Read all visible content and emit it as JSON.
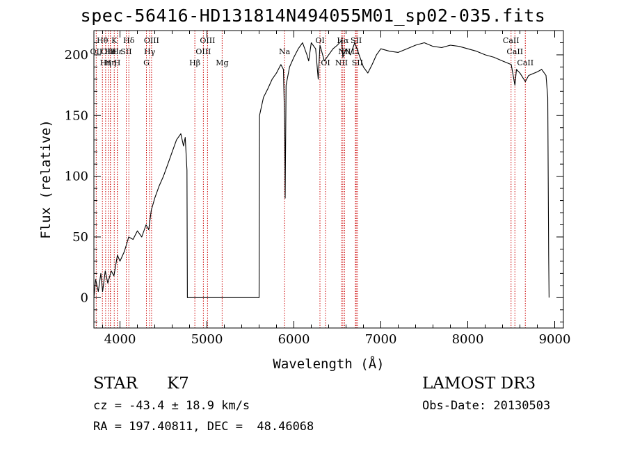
{
  "title": "spec-56416-HD131814N494055M01_sp02-035.fits",
  "info": {
    "class_label": "STAR",
    "subclass": "K7",
    "survey": "LAMOST DR3",
    "cz": "cz = -43.4 ± 18.9 km/s",
    "obs_date": "Obs-Date: 20130503",
    "coords": "RA = 197.40811, DEC =  48.46068"
  },
  "colors": {
    "spectrum": "#000000",
    "lines": "#cc0000",
    "background": "#ffffff"
  },
  "chart_data": {
    "type": "line",
    "title": "spec-56416-HD131814N494055M01_sp02-035.fits",
    "xlabel": "Wavelength (Å)",
    "ylabel": "Flux (relative)",
    "xlim": [
      3700,
      9100
    ],
    "ylim": [
      -25,
      220
    ],
    "xticks": [
      4000,
      5000,
      6000,
      7000,
      8000,
      9000
    ],
    "yticks": [
      0,
      50,
      100,
      150,
      200
    ],
    "grid": false,
    "series": [
      {
        "values": [
          [
            3700,
            0
          ],
          [
            3720,
            15
          ],
          [
            3750,
            5
          ],
          [
            3780,
            20
          ],
          [
            3800,
            5
          ],
          [
            3830,
            22
          ],
          [
            3860,
            12
          ],
          [
            3900,
            22
          ],
          [
            3930,
            18
          ],
          [
            3970,
            35
          ],
          [
            4000,
            30
          ],
          [
            4050,
            38
          ],
          [
            4080,
            45
          ],
          [
            4100,
            50
          ],
          [
            4150,
            48
          ],
          [
            4200,
            55
          ],
          [
            4250,
            50
          ],
          [
            4300,
            60
          ],
          [
            4330,
            56
          ],
          [
            4360,
            72
          ],
          [
            4400,
            82
          ],
          [
            4450,
            92
          ],
          [
            4500,
            100
          ],
          [
            4550,
            110
          ],
          [
            4600,
            120
          ],
          [
            4650,
            130
          ],
          [
            4700,
            135
          ],
          [
            4730,
            125
          ],
          [
            4750,
            132
          ],
          [
            4770,
            105
          ],
          [
            4775,
            0
          ],
          [
            5600,
            0
          ],
          [
            5605,
            150
          ],
          [
            5650,
            165
          ],
          [
            5700,
            172
          ],
          [
            5750,
            180
          ],
          [
            5800,
            185
          ],
          [
            5850,
            192
          ],
          [
            5880,
            188
          ],
          [
            5895,
            140
          ],
          [
            5900,
            82
          ],
          [
            5910,
            175
          ],
          [
            5950,
            190
          ],
          [
            6000,
            198
          ],
          [
            6050,
            205
          ],
          [
            6100,
            210
          ],
          [
            6150,
            200
          ],
          [
            6170,
            195
          ],
          [
            6200,
            210
          ],
          [
            6250,
            205
          ],
          [
            6280,
            180
          ],
          [
            6300,
            208
          ],
          [
            6350,
            195
          ],
          [
            6400,
            200
          ],
          [
            6450,
            205
          ],
          [
            6500,
            208
          ],
          [
            6550,
            212
          ],
          [
            6563,
            198
          ],
          [
            6600,
            205
          ],
          [
            6650,
            200
          ],
          [
            6700,
            210
          ],
          [
            6750,
            200
          ],
          [
            6800,
            190
          ],
          [
            6850,
            185
          ],
          [
            6900,
            192
          ],
          [
            6950,
            200
          ],
          [
            7000,
            205
          ],
          [
            7100,
            203
          ],
          [
            7200,
            202
          ],
          [
            7300,
            205
          ],
          [
            7400,
            208
          ],
          [
            7500,
            210
          ],
          [
            7600,
            207
          ],
          [
            7700,
            206
          ],
          [
            7800,
            208
          ],
          [
            7900,
            207
          ],
          [
            8000,
            205
          ],
          [
            8100,
            203
          ],
          [
            8200,
            200
          ],
          [
            8300,
            198
          ],
          [
            8400,
            195
          ],
          [
            8500,
            192
          ],
          [
            8542,
            175
          ],
          [
            8560,
            188
          ],
          [
            8600,
            185
          ],
          [
            8662,
            178
          ],
          [
            8700,
            183
          ],
          [
            8800,
            186
          ],
          [
            8850,
            188
          ],
          [
            8900,
            183
          ],
          [
            8920,
            165
          ],
          [
            8930,
            35
          ],
          [
            8935,
            0
          ]
        ]
      }
    ],
    "lines": [
      {
        "label": "OII",
        "wl": 3727,
        "row": 2
      },
      {
        "label": "Hθ",
        "wl": 3798,
        "row": 1
      },
      {
        "label": "OIII",
        "wl": 3869,
        "row": 2
      },
      {
        "label": "He",
        "wl": 3889,
        "row": 2
      },
      {
        "label": "Hη",
        "wl": 3835,
        "row": 3
      },
      {
        "label": "Hη",
        "wl": 3890,
        "row": 3
      },
      {
        "label": "K",
        "wl": 3934,
        "row": 1
      },
      {
        "label": "H",
        "wl": 3968,
        "row": 3
      },
      {
        "label": "Hε",
        "wl": 3970,
        "row": 2
      },
      {
        "label": "SII",
        "wl": 4072,
        "row": 2
      },
      {
        "label": "Hδ",
        "wl": 4102,
        "row": 1
      },
      {
        "label": "G",
        "wl": 4304,
        "row": 3
      },
      {
        "label": "Hγ",
        "wl": 4341,
        "row": 2
      },
      {
        "label": "OIII",
        "wl": 4363,
        "row": 1
      },
      {
        "label": "Hβ",
        "wl": 4861,
        "row": 3
      },
      {
        "label": "OIII",
        "wl": 4959,
        "row": 2
      },
      {
        "label": "OIII",
        "wl": 5007,
        "row": 1
      },
      {
        "label": "Mg",
        "wl": 5175,
        "row": 3
      },
      {
        "label": "Na",
        "wl": 5893,
        "row": 2
      },
      {
        "label": "OI",
        "wl": 6300,
        "row": 1
      },
      {
        "label": "OI",
        "wl": 6364,
        "row": 3
      },
      {
        "label": "NII",
        "wl": 6548,
        "row": 3
      },
      {
        "label": "Hα",
        "wl": 6563,
        "row": 1
      },
      {
        "label": "NII",
        "wl": 6583,
        "row": 2
      },
      {
        "label": "Li",
        "wl": 6708,
        "row": 2
      },
      {
        "label": "SII",
        "wl": 6717,
        "row": 1
      },
      {
        "label": "SII",
        "wl": 6731,
        "row": 3
      },
      {
        "label": "CaII",
        "wl": 8498,
        "row": 1
      },
      {
        "label": "CaII",
        "wl": 8542,
        "row": 2
      },
      {
        "label": "CaII",
        "wl": 8662,
        "row": 3
      }
    ]
  }
}
